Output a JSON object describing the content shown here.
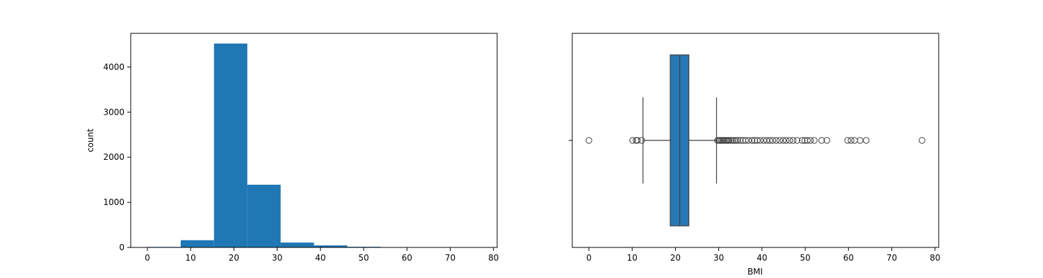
{
  "chart_data": [
    {
      "type": "bar",
      "subtype": "histogram",
      "title": "",
      "xlabel": "",
      "ylabel": "count",
      "bins": [
        {
          "x0": 0.0,
          "x1": 7.7,
          "count": 11
        },
        {
          "x0": 7.7,
          "x1": 15.4,
          "count": 160
        },
        {
          "x0": 15.4,
          "x1": 23.1,
          "count": 4520
        },
        {
          "x0": 23.1,
          "x1": 30.8,
          "count": 1390
        },
        {
          "x0": 30.8,
          "x1": 38.5,
          "count": 108
        },
        {
          "x0": 38.5,
          "x1": 46.2,
          "count": 45
        },
        {
          "x0": 46.2,
          "x1": 53.9,
          "count": 14
        },
        {
          "x0": 53.9,
          "x1": 61.6,
          "count": 3
        },
        {
          "x0": 61.6,
          "x1": 69.3,
          "count": 2
        },
        {
          "x0": 69.3,
          "x1": 77.0,
          "count": 1
        }
      ],
      "xlim": [
        -3.85,
        80.85
      ],
      "ylim": [
        0,
        4746
      ],
      "xticks": [
        "0",
        "10",
        "20",
        "30",
        "40",
        "50",
        "60",
        "70",
        "80"
      ],
      "yticks": [
        "0",
        "1000",
        "2000",
        "3000",
        "4000"
      ],
      "color": "#1f77b4",
      "grid": false
    },
    {
      "type": "box",
      "title": "",
      "xlabel": "BMI",
      "ylabel": "",
      "box": {
        "min": 12.5,
        "q1": 18.8,
        "median": 21.0,
        "q3": 23.1,
        "max": 29.5
      },
      "outliers": [
        0,
        10.1,
        10.9,
        11.2,
        12.2,
        29.7,
        30.0,
        30.3,
        30.6,
        30.9,
        31.2,
        31.5,
        31.8,
        32.1,
        32.4,
        32.8,
        33.2,
        33.6,
        34.0,
        34.4,
        35.0,
        35.6,
        36.2,
        36.9,
        37.7,
        38.3,
        38.9,
        39.6,
        40.4,
        41.1,
        41.8,
        42.5,
        43.3,
        44.1,
        44.9,
        45.6,
        46.4,
        47.2,
        48.1,
        49.3,
        49.9,
        50.5,
        51.2,
        52.1,
        53.8,
        55.0,
        59.8,
        60.6,
        61.4,
        62.7,
        64.1,
        77.0
      ],
      "xlim": [
        -3.85,
        80.85
      ],
      "xticks": [
        "0",
        "10",
        "20",
        "30",
        "40",
        "50",
        "60",
        "70",
        "80"
      ],
      "color": "#2878b5",
      "grid": false
    }
  ]
}
